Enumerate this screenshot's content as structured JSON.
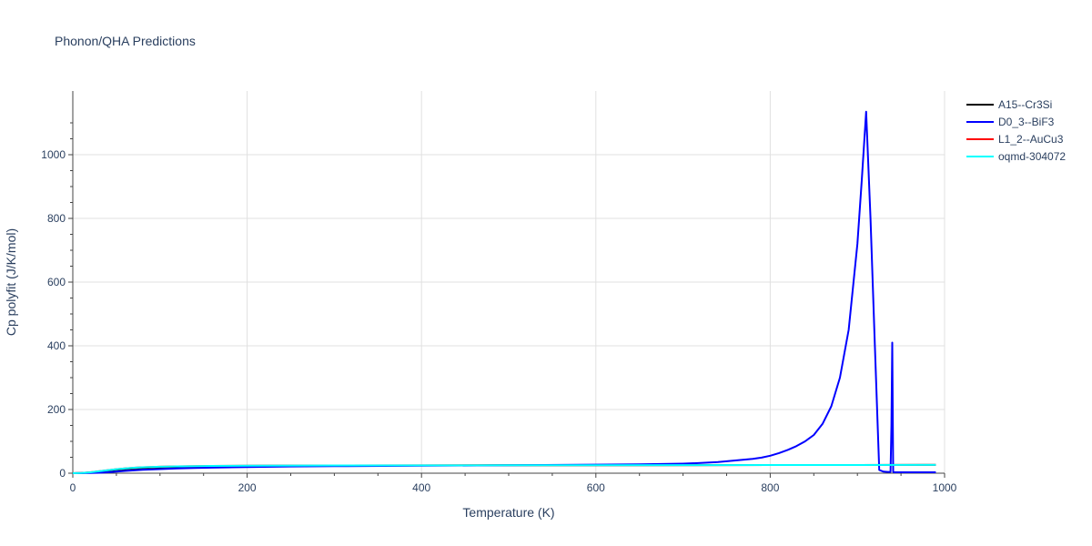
{
  "chart_data": {
    "type": "line",
    "title": "Phonon/QHA Predictions",
    "xlabel": "Temperature (K)",
    "ylabel": "Cp polyfit (J/K/mol)",
    "xlim": [
      0,
      1000
    ],
    "ylim": [
      0,
      1200
    ],
    "x_ticks": [
      0,
      200,
      400,
      600,
      800,
      1000
    ],
    "x_tick_labels": [
      "0",
      "200",
      "400",
      "600",
      "800",
      "1000"
    ],
    "y_ticks": [
      0,
      200,
      400,
      600,
      800,
      1000
    ],
    "y_tick_labels": [
      "0",
      "200",
      "400",
      "600",
      "800",
      "1000"
    ],
    "grid": true,
    "legend_position": "top-right",
    "series": [
      {
        "name": "A15--Cr3Si",
        "color": "#000000",
        "x": [
          0,
          10,
          20,
          30,
          40,
          50,
          60,
          70,
          80,
          100,
          120,
          140,
          160,
          200,
          250,
          300,
          400,
          500,
          600,
          700,
          800,
          900,
          990
        ],
        "y": [
          0,
          0.5,
          2,
          4.5,
          7.5,
          10.5,
          13,
          15,
          16.5,
          18.5,
          20,
          21,
          21.8,
          22.8,
          23.5,
          24,
          24.4,
          24.8,
          25.1,
          25.4,
          25.6,
          25.8,
          26
        ]
      },
      {
        "name": "D0_3--BiF3",
        "color": "#0000ff",
        "x": [
          0,
          20,
          30,
          40,
          50,
          60,
          80,
          100,
          120,
          140,
          160,
          200,
          250,
          300,
          400,
          500,
          600,
          650,
          700,
          720,
          740,
          760,
          780,
          790,
          800,
          810,
          820,
          830,
          840,
          850,
          860,
          870,
          880,
          890,
          900,
          905,
          910,
          915,
          920,
          925,
          930,
          935,
          938,
          939,
          940,
          941,
          942,
          943,
          950,
          990
        ],
        "y": [
          0,
          0.5,
          1.5,
          3,
          5,
          7,
          10.5,
          13,
          15,
          16.5,
          17.5,
          19.5,
          21,
          22,
          23.5,
          25,
          27,
          28,
          30,
          32,
          35,
          40,
          45,
          49,
          55,
          63,
          73,
          85,
          100,
          120,
          155,
          210,
          300,
          450,
          720,
          920,
          1135,
          800,
          400,
          10,
          5,
          4,
          4,
          150,
          410,
          4,
          3,
          3,
          3,
          3
        ]
      },
      {
        "name": "L1_2--AuCu3",
        "color": "#ff0000",
        "x": [
          0,
          10,
          20,
          30,
          40,
          50,
          60,
          70,
          80,
          100,
          120,
          140,
          160,
          200,
          250,
          300,
          400,
          500,
          600,
          700,
          800,
          900,
          990
        ],
        "y": [
          0,
          0.8,
          3,
          6,
          9.5,
          12.5,
          15,
          17,
          18.5,
          20.3,
          21.5,
          22.3,
          22.9,
          23.6,
          24,
          24.3,
          24.7,
          25,
          25.2,
          25.4,
          25.6,
          25.8,
          26
        ]
      },
      {
        "name": "oqmd-304072",
        "color": "#00ffff",
        "x": [
          0,
          10,
          20,
          30,
          40,
          50,
          60,
          70,
          80,
          100,
          120,
          140,
          160,
          200,
          250,
          300,
          400,
          500,
          600,
          700,
          800,
          900,
          990
        ],
        "y": [
          0,
          0.8,
          3,
          6,
          9.5,
          12.5,
          15,
          17,
          18.5,
          20.3,
          21.5,
          22.3,
          22.9,
          23.6,
          24,
          24.3,
          24.7,
          25,
          25.2,
          25.4,
          25.6,
          25.8,
          26
        ]
      }
    ]
  }
}
